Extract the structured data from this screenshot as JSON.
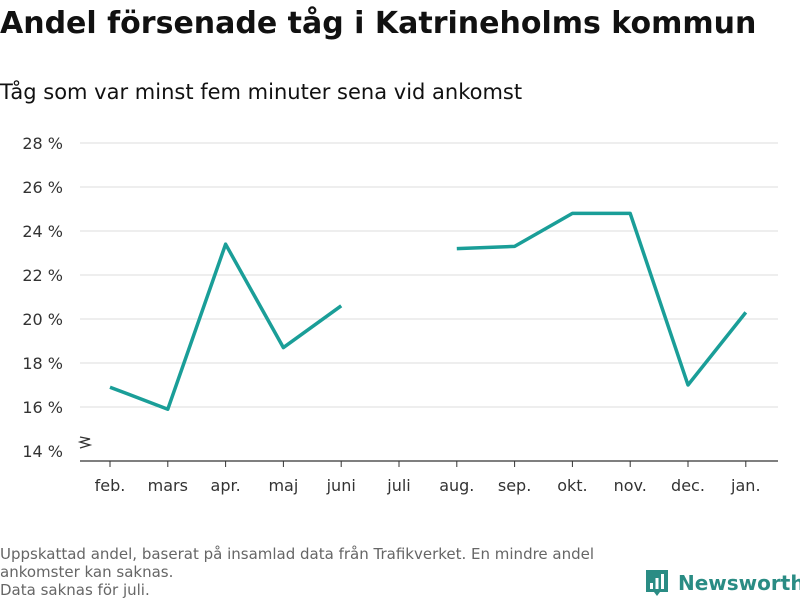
{
  "header": {
    "title": "Andel försenade tåg i Katrineholms kommun",
    "subtitle": "Tåg som var minst fem minuter sena vid ankomst"
  },
  "footnote": {
    "line1": "Uppskattad andel, baserat på insamlad data från Trafikverket. En mindre andel",
    "line2": "ankomster kan saknas.",
    "line3": "Data saknas för juli."
  },
  "brand": {
    "name": "Newsworthy",
    "icon": "newsworthy-logo-icon",
    "color": "#2a8c84"
  },
  "chart_data": {
    "type": "line",
    "categories": [
      "feb.",
      "mars",
      "apr.",
      "maj",
      "juni",
      "juli",
      "aug.",
      "sep.",
      "okt.",
      "nov.",
      "dec.",
      "jan."
    ],
    "series": [
      {
        "values": [
          16.9,
          15.9,
          23.4,
          18.7,
          20.6,
          null,
          23.2,
          23.3,
          24.8,
          24.8,
          17.0,
          20.3
        ],
        "color": "#1a9e98"
      }
    ],
    "yticks": [
      "14 %",
      "16 %",
      "18 %",
      "20 %",
      "22 %",
      "24 %",
      "26 %",
      "28 %"
    ],
    "ylim": [
      14,
      28
    ],
    "grid": true,
    "axis_break": true
  }
}
